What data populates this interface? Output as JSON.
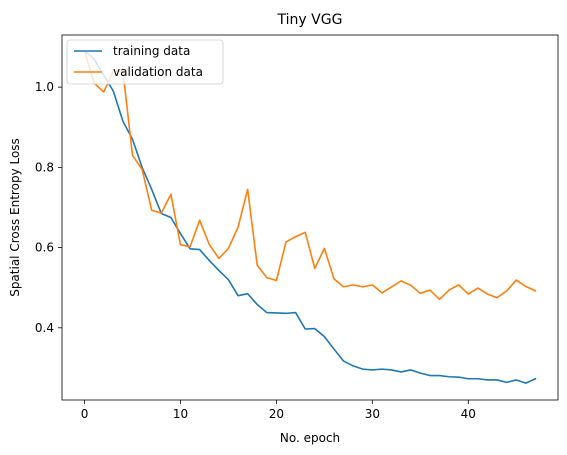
{
  "chart_data": {
    "type": "line",
    "title": "Tiny VGG",
    "xlabel": "No. epoch",
    "ylabel": "Spatial Cross Entropy Loss",
    "xlim": [
      -2.35,
      49.35
    ],
    "ylim": [
      0.22,
      1.13
    ],
    "xticks": [
      0,
      10,
      20,
      30,
      40
    ],
    "yticks": [
      0.4,
      0.6,
      0.8,
      1.0
    ],
    "xtick_labels": [
      "0",
      "10",
      "20",
      "30",
      "40"
    ],
    "ytick_labels": [
      "0.4",
      "0.6",
      "0.8",
      "1.0"
    ],
    "grid": false,
    "legend_position": "top-left",
    "x": [
      0,
      1,
      2,
      3,
      4,
      5,
      6,
      7,
      8,
      9,
      10,
      11,
      12,
      13,
      14,
      15,
      16,
      17,
      18,
      19,
      20,
      21,
      22,
      23,
      24,
      25,
      26,
      27,
      28,
      29,
      30,
      31,
      32,
      33,
      34,
      35,
      36,
      37,
      38,
      39,
      40,
      41,
      42,
      43,
      44,
      45,
      46,
      47
    ],
    "series": [
      {
        "name": "training data",
        "color": "#1f77b4",
        "values": [
          1.09,
          1.07,
          1.03,
          0.99,
          0.915,
          0.87,
          0.8,
          0.745,
          0.685,
          0.675,
          0.635,
          0.597,
          0.595,
          0.568,
          0.543,
          0.52,
          0.48,
          0.485,
          0.458,
          0.438,
          0.437,
          0.436,
          0.438,
          0.397,
          0.398,
          0.378,
          0.347,
          0.317,
          0.305,
          0.297,
          0.295,
          0.297,
          0.295,
          0.29,
          0.295,
          0.287,
          0.281,
          0.281,
          0.278,
          0.277,
          0.273,
          0.273,
          0.27,
          0.27,
          0.264,
          0.27,
          0.262,
          0.273
        ]
      },
      {
        "name": "validation data",
        "color": "#ff7f0e",
        "values": [
          1.09,
          1.01,
          0.988,
          1.04,
          1.04,
          0.83,
          0.795,
          0.693,
          0.686,
          0.733,
          0.607,
          0.602,
          0.668,
          0.608,
          0.573,
          0.598,
          0.651,
          0.745,
          0.556,
          0.525,
          0.518,
          0.614,
          0.627,
          0.638,
          0.548,
          0.598,
          0.522,
          0.502,
          0.507,
          0.502,
          0.507,
          0.487,
          0.502,
          0.517,
          0.506,
          0.486,
          0.494,
          0.471,
          0.494,
          0.507,
          0.484,
          0.499,
          0.484,
          0.475,
          0.492,
          0.519,
          0.503,
          0.492
        ]
      }
    ]
  }
}
